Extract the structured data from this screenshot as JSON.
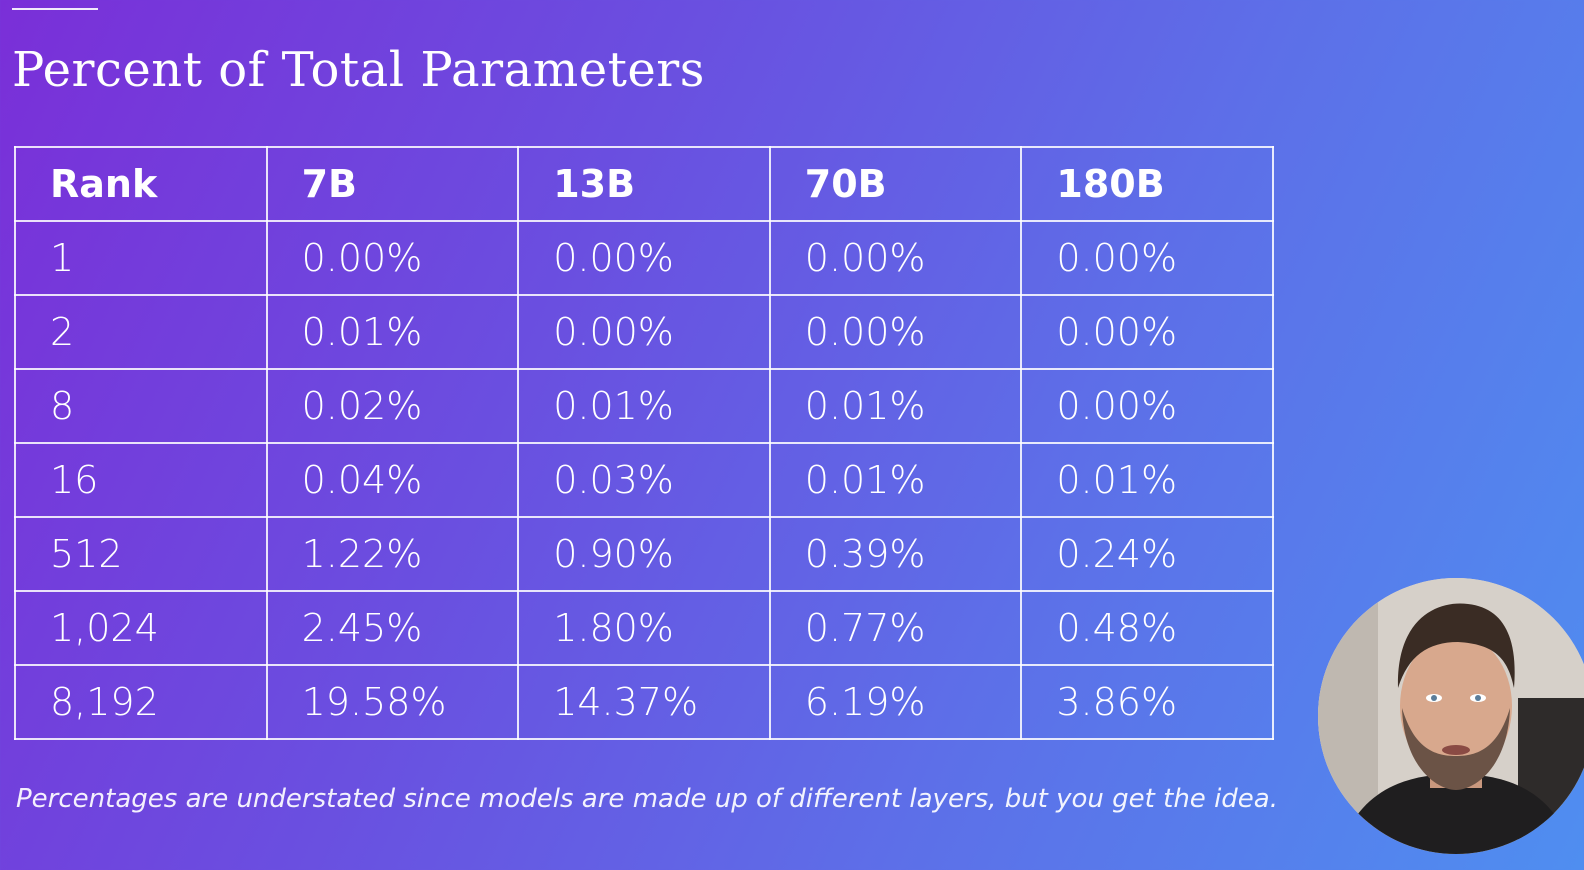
{
  "slide": {
    "title": "Percent of Total Parameters",
    "footnote": "Percentages are understated since models are made up of different layers, but you get the idea."
  },
  "table": {
    "headers": [
      "Rank",
      "7B",
      "13B",
      "70B",
      "180B"
    ],
    "rows": [
      [
        "1",
        "0.00%",
        "0.00%",
        "0.00%",
        "0.00%"
      ],
      [
        "2",
        "0.01%",
        "0.00%",
        "0.00%",
        "0.00%"
      ],
      [
        "8",
        "0.02%",
        "0.01%",
        "0.01%",
        "0.00%"
      ],
      [
        "16",
        "0.04%",
        "0.03%",
        "0.01%",
        "0.01%"
      ],
      [
        "512",
        "1.22%",
        "0.90%",
        "0.39%",
        "0.24%"
      ],
      [
        "1,024",
        "2.45%",
        "1.80%",
        "0.77%",
        "0.48%"
      ],
      [
        "8,192",
        "19.58%",
        "14.37%",
        "6.19%",
        "3.86%"
      ]
    ]
  },
  "colors": {
    "gradient_start": "#7a2fd8",
    "gradient_end": "#4f8ef0",
    "text": "#ffffff"
  }
}
